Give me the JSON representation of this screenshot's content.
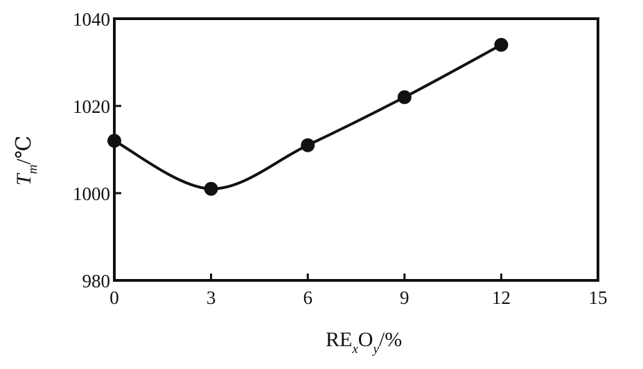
{
  "chart_data": {
    "type": "line",
    "x": [
      0,
      3,
      6,
      9,
      12
    ],
    "y": [
      1012,
      1001,
      1011,
      1022,
      1034
    ],
    "xlim": [
      0,
      15
    ],
    "ylim": [
      980,
      1040
    ],
    "xticks": [
      "0",
      "3",
      "6",
      "9",
      "12",
      "15"
    ],
    "yticks": [
      "980",
      "1000",
      "1020",
      "1040"
    ],
    "xlabel": {
      "main": "RE",
      "sub1": "x",
      "mid": "O",
      "sub2": "y",
      "tail": "/%"
    },
    "ylabel": {
      "main": "T",
      "sub": "m",
      "tail": "/℃"
    },
    "grid": false,
    "line_color": "#111111",
    "marker": "filled-circle"
  }
}
